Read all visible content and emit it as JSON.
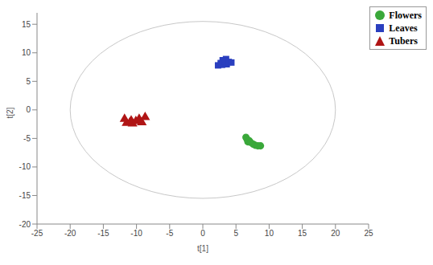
{
  "chart_data": {
    "type": "scatter",
    "x_label": "t[1]",
    "y_label": "t[2]",
    "xlim": [
      -25,
      25
    ],
    "xticks": [
      -25,
      -20,
      -15,
      -10,
      -5,
      0,
      5,
      10,
      15,
      20,
      25
    ],
    "ylim": [
      -20,
      17
    ],
    "yticks": [
      -20,
      -15,
      -10,
      -5,
      0,
      5,
      10,
      15
    ],
    "grid": false,
    "legend": "top-right",
    "ellipse": {
      "x_radius": 20,
      "y_radius": 15.5
    },
    "series": [
      {
        "name": "Flowers",
        "color": "#3aa83a",
        "marker": "circle",
        "x": [
          6.5,
          6.7,
          6.8,
          7.0,
          7.2,
          7.6,
          7.9,
          8.3,
          8.7
        ],
        "values": [
          -4.8,
          -5.2,
          -5.6,
          -5.4,
          -5.7,
          -6.0,
          -6.2,
          -6.3,
          -6.3
        ]
      },
      {
        "name": "Leaves",
        "color": "#2a3fbf",
        "marker": "square",
        "x": [
          2.3,
          2.7,
          2.9,
          3.0,
          3.3,
          3.5,
          3.6,
          3.9,
          4.3
        ],
        "values": [
          7.8,
          8.2,
          7.9,
          8.7,
          8.5,
          8.9,
          8.0,
          8.4,
          8.3
        ]
      },
      {
        "name": "Tubers",
        "color": "#b01515",
        "marker": "triangle",
        "x": [
          -11.8,
          -11.5,
          -11.0,
          -10.8,
          -10.6,
          -10.1,
          -9.6,
          -9.2,
          -8.7
        ],
        "values": [
          -1.6,
          -2.3,
          -2.2,
          -1.9,
          -2.4,
          -2.0,
          -1.6,
          -2.2,
          -1.3
        ]
      }
    ]
  }
}
